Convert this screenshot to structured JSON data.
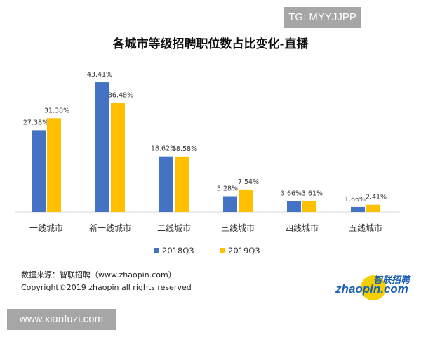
{
  "watermark_top": "TG: MYYJJPP",
  "watermark_bottom": "www.xianfuzi.com",
  "source": "数据来源：智联招聘（www.zhaopin.com）",
  "copyright": "Copyright©2019 zhaopin all rights reserved",
  "logo": {
    "cn": "智联招聘",
    "en": "zhaopin.com"
  },
  "colors": {
    "2018Q3": "#4472C4",
    "2019Q3": "#FFC000"
  },
  "chart_data": {
    "type": "bar",
    "title": "各城市等级招聘职位数占比变化-直播",
    "categories": [
      "一线城市",
      "新一线城市",
      "二线城市",
      "三线城市",
      "四线城市",
      "五线城市"
    ],
    "series": [
      {
        "name": "2018Q3",
        "values": [
          27.38,
          43.41,
          18.62,
          5.28,
          3.66,
          1.66
        ],
        "labels": [
          "27.38%",
          "43.41%",
          "18.62%",
          "5.28%",
          "3.66%",
          "1.66%"
        ]
      },
      {
        "name": "2019Q3",
        "values": [
          31.38,
          36.48,
          18.58,
          7.54,
          3.61,
          2.41
        ],
        "labels": [
          "31.38%",
          "36.48%",
          "18.58%",
          "7.54%",
          "3.61%",
          "2.41%"
        ]
      }
    ],
    "legend": "bottom",
    "grid": false
  }
}
